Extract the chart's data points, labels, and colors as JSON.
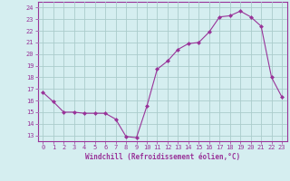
{
  "x": [
    0,
    1,
    2,
    3,
    4,
    5,
    6,
    7,
    8,
    9,
    10,
    11,
    12,
    13,
    14,
    15,
    16,
    17,
    18,
    19,
    20,
    21,
    22,
    23
  ],
  "y": [
    16.7,
    15.9,
    15.0,
    15.0,
    14.9,
    14.9,
    14.9,
    14.4,
    12.9,
    12.8,
    15.5,
    18.7,
    19.4,
    20.4,
    20.9,
    21.0,
    21.9,
    23.2,
    23.3,
    23.7,
    23.2,
    22.4,
    18.0,
    16.3
  ],
  "line_color": "#993399",
  "marker": "D",
  "marker_size": 2.5,
  "bg_color": "#d5eef0",
  "grid_color": "#aacccc",
  "xlabel": "Windchill (Refroidissement éolien,°C)",
  "xlabel_color": "#993399",
  "ylabel_ticks": [
    13,
    14,
    15,
    16,
    17,
    18,
    19,
    20,
    21,
    22,
    23,
    24
  ],
  "xlim": [
    -0.5,
    23.5
  ],
  "ylim": [
    12.5,
    24.5
  ],
  "xtick_labels": [
    "0",
    "1",
    "2",
    "3",
    "4",
    "5",
    "6",
    "7",
    "8",
    "9",
    "10",
    "11",
    "12",
    "13",
    "14",
    "15",
    "16",
    "17",
    "18",
    "19",
    "20",
    "21",
    "22",
    "23"
  ],
  "tick_color": "#993399",
  "spine_color": "#993399",
  "tick_fontsize": 5.0,
  "xlabel_fontsize": 5.5
}
